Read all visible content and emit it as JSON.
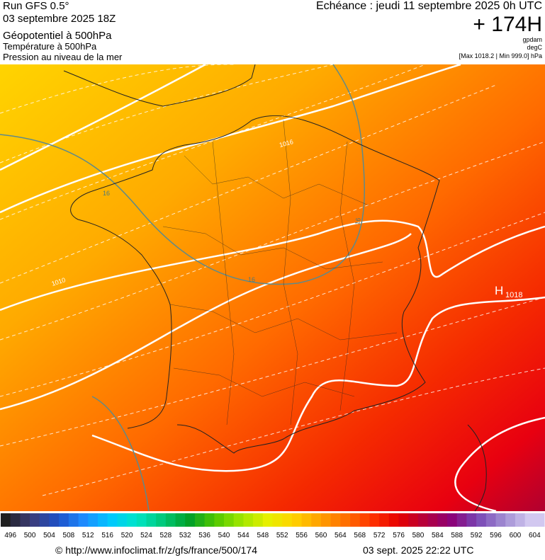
{
  "header": {
    "run": "Run GFS 0.5°",
    "date": "03 septembre 2025 18Z",
    "field1": "Géopotentiel à 500hPa",
    "field2": "Température à 500hPa",
    "field3": "Pression au niveau de la mer",
    "echeance": "Echéance : jeudi 11 septembre 2025 0h UTC",
    "offset": "+ 174H",
    "unit1": "gpdam",
    "unit2": "degC",
    "range": "[Max 1018.2 | Min 999.0] hPa"
  },
  "map": {
    "labels": [
      "1016",
      "1010",
      "16",
      "16",
      "16",
      "H",
      "1018"
    ]
  },
  "colorbar": {
    "values": [
      496,
      500,
      504,
      508,
      512,
      516,
      520,
      524,
      528,
      532,
      536,
      540,
      544,
      548,
      552,
      556,
      560,
      564,
      568,
      572,
      576,
      580,
      584,
      588,
      592,
      596,
      600,
      604
    ]
  },
  "footer": {
    "url": "© http://www.infoclimat.fr/z/gfs/france/500/174",
    "timestamp": "03 sept. 2025 22:22 UTC"
  }
}
